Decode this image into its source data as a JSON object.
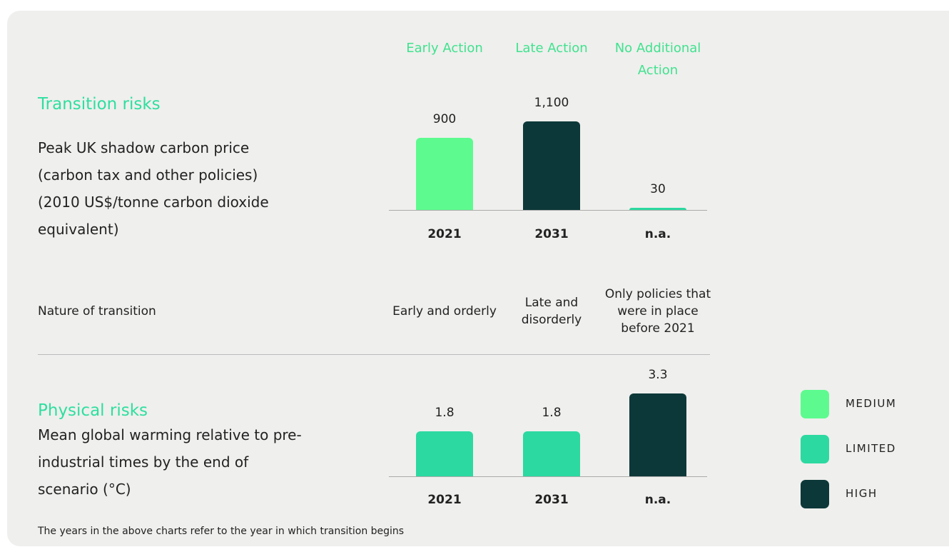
{
  "scenarios": [
    "Early Action",
    "Late Action",
    "No Additional Action"
  ],
  "chart_data": [
    {
      "type": "bar",
      "title": "Transition risks",
      "subtitle": "Peak UK shadow carbon price (carbon tax and other policies) (2010 US$/tonne carbon dioxide equivalent)",
      "categories": [
        "2021",
        "2031",
        "n.a."
      ],
      "values": [
        900,
        1100,
        30
      ],
      "value_labels": [
        "900",
        "1,100",
        "30"
      ],
      "colors": [
        "#5dfb8f",
        "#0d3839",
        "#2cd9a1"
      ]
    },
    {
      "type": "bar",
      "title": "Physical risks",
      "subtitle": "Mean global warming relative to pre-industrial times by the end of scenario (°C)",
      "categories": [
        "2021",
        "2031",
        "n.a."
      ],
      "values": [
        1.8,
        1.8,
        3.3
      ],
      "colors": [
        "#2cd9a1",
        "#2cd9a1",
        "#0d3839"
      ]
    }
  ],
  "nature": {
    "label": "Nature of transition",
    "values": [
      "Early and orderly",
      "Late and disorderly",
      "Only policies that were in place before 2021"
    ]
  },
  "legend": [
    {
      "label": "MEDIUM",
      "color": "#5dfb8f"
    },
    {
      "label": "LIMITED",
      "color": "#2cd9a1"
    },
    {
      "label": "HIGH",
      "color": "#0d3839"
    }
  ],
  "note": "The years in the above charts refer to the year in which transition begins"
}
